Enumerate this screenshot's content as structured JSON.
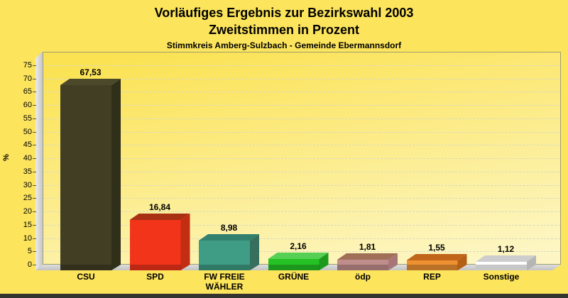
{
  "title": {
    "line1": "Vorläufiges Ergebnis zur Bezirkswahl 2003",
    "line2": "Zweitstimmen in Prozent"
  },
  "subtitle": "Stimmkreis Amberg-Sulzbach - Gemeinde Ebermannsdorf",
  "chart_data": {
    "type": "bar",
    "style": "3d-column",
    "title": "Vorläufiges Ergebnis zur Bezirkswahl 2003 — Zweitstimmen in Prozent",
    "subtitle": "Stimmkreis Amberg-Sulzbach - Gemeinde Ebermannsdorf",
    "categories": [
      "CSU",
      "SPD",
      "FW FREIE WÄHLER",
      "GRÜNE",
      "ödp",
      "REP",
      "Sonstige"
    ],
    "category_display": [
      "CSU",
      "SPD",
      "FW FREIE\nWÄHLER",
      "GRÜNE",
      "ödp",
      "REP",
      "Sonstige"
    ],
    "values": [
      67.53,
      16.84,
      8.98,
      2.16,
      1.81,
      1.55,
      1.12
    ],
    "value_labels": [
      "67,53",
      "16,84",
      "8,98",
      "2,16",
      "1,81",
      "1,55",
      "1,12"
    ],
    "xlabel": "",
    "ylabel": "%",
    "ylim": [
      0,
      75
    ],
    "ytick_step": 5,
    "grid": "horizontal-dashed",
    "legend": "none",
    "bar_colors": [
      {
        "slug": "csu",
        "front": "#413e24",
        "top": "#4b4929",
        "side": "#302f1a"
      },
      {
        "slug": "spd",
        "front": "#f1341a",
        "top": "#a93113",
        "side": "#c32d11"
      },
      {
        "slug": "fw",
        "front": "#3f9c85",
        "top": "#31816e",
        "side": "#366f5e"
      },
      {
        "slug": "gruene",
        "front": "#25c125",
        "top": "#55d055",
        "side": "#1d9a1d"
      },
      {
        "slug": "oedp",
        "front": "#c08d8d",
        "top": "#a06f58",
        "side": "#a87676"
      },
      {
        "slug": "rep",
        "front": "#ee9133",
        "top": "#c0651a",
        "side": "#b55f16"
      },
      {
        "slug": "sonstige",
        "front": "#ffffff",
        "top": "#cdcdcd",
        "side": "#b5b5b5"
      }
    ]
  }
}
